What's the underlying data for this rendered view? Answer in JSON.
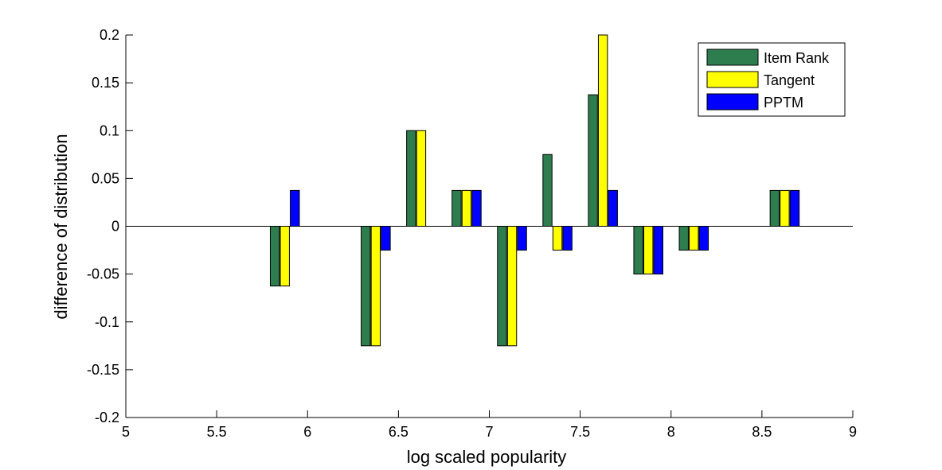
{
  "chart_data": {
    "type": "bar",
    "title": "",
    "xlabel": "log scaled popularity",
    "ylabel": "difference of distribution",
    "xlim": [
      5,
      9
    ],
    "ylim": [
      -0.2,
      0.2
    ],
    "xticks": [
      "5",
      "5.5",
      "6",
      "6.5",
      "7",
      "7.5",
      "8",
      "8.5",
      "9"
    ],
    "xtick_values": [
      5,
      5.5,
      6,
      6.5,
      7,
      7.5,
      8,
      8.5,
      9
    ],
    "yticks": [
      "-0.2",
      "-0.15",
      "-0.1",
      "-0.05",
      "0",
      "0.05",
      "0.1",
      "0.15",
      "0.2"
    ],
    "ytick_values": [
      -0.2,
      -0.15,
      -0.1,
      -0.05,
      0,
      0.05,
      0.1,
      0.15,
      0.2
    ],
    "x": [
      5.875,
      6.375,
      6.625,
      6.875,
      7.125,
      7.375,
      7.625,
      7.875,
      8.125,
      8.625
    ],
    "series": [
      {
        "name": "Item Rank",
        "color": "#2e7d4f",
        "values": [
          -0.0625,
          -0.125,
          0.1,
          0.0375,
          -0.125,
          0.075,
          0.1375,
          -0.05,
          -0.025,
          0.0375
        ]
      },
      {
        "name": "Tangent",
        "color": "#ffff00",
        "values": [
          -0.0625,
          -0.125,
          0.1,
          0.0375,
          -0.125,
          -0.025,
          0.2,
          -0.05,
          -0.025,
          0.0375
        ]
      },
      {
        "name": "PPTM",
        "color": "#0000ff",
        "values": [
          0.0375,
          -0.025,
          null,
          0.0375,
          -0.025,
          -0.025,
          0.0375,
          -0.05,
          -0.025,
          0.0375
        ]
      }
    ],
    "legend_position": "top-right",
    "grid": false,
    "zero_line": true
  }
}
